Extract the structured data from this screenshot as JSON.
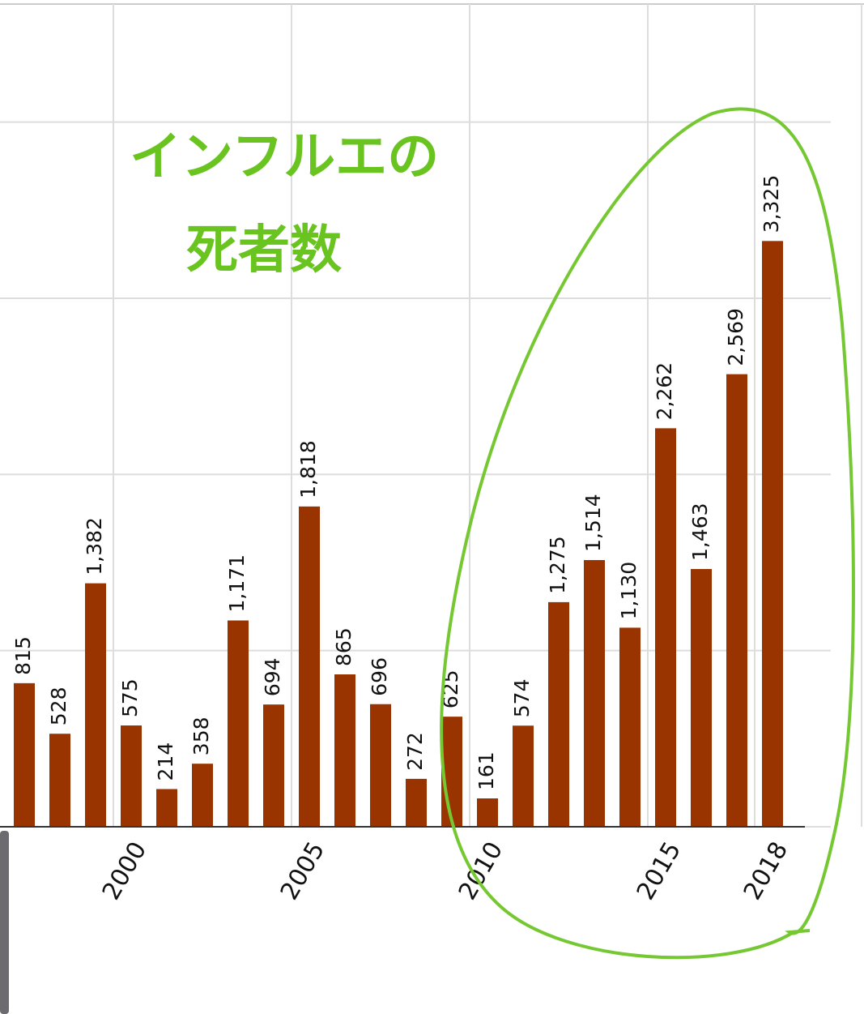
{
  "chart_data": {
    "type": "bar",
    "annotation": [
      "インフルエの",
      "死者数"
    ],
    "categories": [
      null,
      null,
      null,
      "2000",
      null,
      null,
      null,
      null,
      "2005",
      null,
      null,
      null,
      null,
      "2010",
      null,
      null,
      null,
      null,
      "2015",
      null,
      null,
      "2018"
    ],
    "values": [
      815,
      528,
      1382,
      575,
      214,
      358,
      1171,
      694,
      1818,
      865,
      696,
      272,
      625,
      161,
      574,
      1275,
      1514,
      1130,
      2262,
      1463,
      2569,
      3325
    ],
    "value_labels": [
      "815",
      "528",
      "1,382",
      "575",
      "214",
      "358",
      "1,171",
      "694",
      "1,818",
      "865",
      "696",
      "272",
      "625",
      "161",
      "574",
      "1,275",
      "1,514",
      "1,130",
      "2,262",
      "1,463",
      "2,569",
      "3,325"
    ],
    "color": "#993300",
    "ylim": [
      0,
      4670
    ],
    "yticks": [
      0,
      1000,
      2000,
      3000,
      4000
    ],
    "grid": true
  }
}
